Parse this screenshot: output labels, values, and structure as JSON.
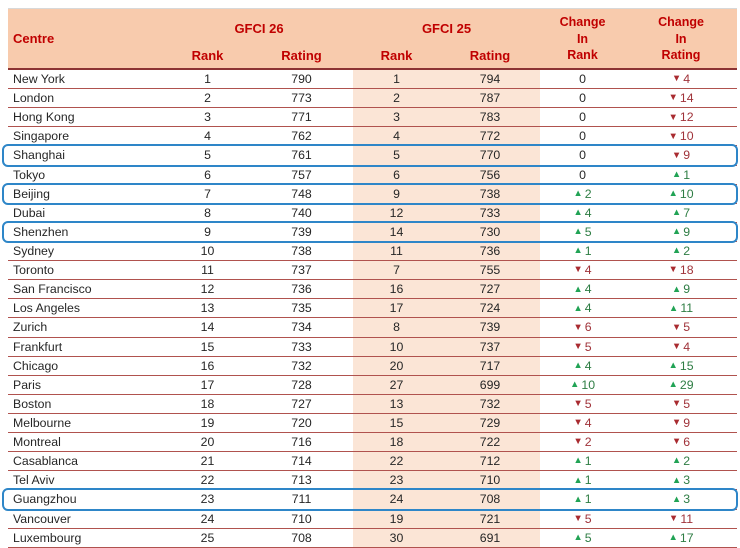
{
  "chart_data": {
    "type": "table",
    "header": {
      "centre": "Centre",
      "gfci26": "GFCI 26",
      "gfci25": "GFCI 25",
      "rank": "Rank",
      "rating": "Rating",
      "change_in_rank": "Change\nIn\nRank",
      "change_in_rating": "Change\nIn\nRating"
    },
    "icons": {
      "up_arrow": "▲",
      "down_arrow": "▼"
    },
    "colors": {
      "header_bg": "#F8CBAD",
      "shaded_column_bg": "#FBE5D6",
      "header_text": "#C00000",
      "row_separator": "#B0524E",
      "header_thick_rule": "#8C3333",
      "highlight_box": "#2E86C8",
      "up_arrow": "#21A355",
      "down_arrow": "#A92B30",
      "body_text": "#262626"
    },
    "rows": [
      {
        "centre": "New York",
        "gfci26_rank": 1,
        "gfci26_rating": 790,
        "gfci25_rank": 1,
        "gfci25_rating": 794,
        "change_rank": {
          "dir": "none",
          "value": 0
        },
        "change_rating": {
          "dir": "down",
          "value": 4
        },
        "highlight": false
      },
      {
        "centre": "London",
        "gfci26_rank": 2,
        "gfci26_rating": 773,
        "gfci25_rank": 2,
        "gfci25_rating": 787,
        "change_rank": {
          "dir": "none",
          "value": 0
        },
        "change_rating": {
          "dir": "down",
          "value": 14
        },
        "highlight": false
      },
      {
        "centre": "Hong Kong",
        "gfci26_rank": 3,
        "gfci26_rating": 771,
        "gfci25_rank": 3,
        "gfci25_rating": 783,
        "change_rank": {
          "dir": "none",
          "value": 0
        },
        "change_rating": {
          "dir": "down",
          "value": 12
        },
        "highlight": false
      },
      {
        "centre": "Singapore",
        "gfci26_rank": 4,
        "gfci26_rating": 762,
        "gfci25_rank": 4,
        "gfci25_rating": 772,
        "change_rank": {
          "dir": "none",
          "value": 0
        },
        "change_rating": {
          "dir": "down",
          "value": 10
        },
        "highlight": false
      },
      {
        "centre": "Shanghai",
        "gfci26_rank": 5,
        "gfci26_rating": 761,
        "gfci25_rank": 5,
        "gfci25_rating": 770,
        "change_rank": {
          "dir": "none",
          "value": 0
        },
        "change_rating": {
          "dir": "down",
          "value": 9
        },
        "highlight": true
      },
      {
        "centre": "Tokyo",
        "gfci26_rank": 6,
        "gfci26_rating": 757,
        "gfci25_rank": 6,
        "gfci25_rating": 756,
        "change_rank": {
          "dir": "none",
          "value": 0
        },
        "change_rating": {
          "dir": "up",
          "value": 1
        },
        "highlight": false
      },
      {
        "centre": "Beijing",
        "gfci26_rank": 7,
        "gfci26_rating": 748,
        "gfci25_rank": 9,
        "gfci25_rating": 738,
        "change_rank": {
          "dir": "up",
          "value": 2
        },
        "change_rating": {
          "dir": "up",
          "value": 10
        },
        "highlight": true
      },
      {
        "centre": "Dubai",
        "gfci26_rank": 8,
        "gfci26_rating": 740,
        "gfci25_rank": 12,
        "gfci25_rating": 733,
        "change_rank": {
          "dir": "up",
          "value": 4
        },
        "change_rating": {
          "dir": "up",
          "value": 7
        },
        "highlight": false
      },
      {
        "centre": "Shenzhen",
        "gfci26_rank": 9,
        "gfci26_rating": 739,
        "gfci25_rank": 14,
        "gfci25_rating": 730,
        "change_rank": {
          "dir": "up",
          "value": 5
        },
        "change_rating": {
          "dir": "up",
          "value": 9
        },
        "highlight": true
      },
      {
        "centre": "Sydney",
        "gfci26_rank": 10,
        "gfci26_rating": 738,
        "gfci25_rank": 11,
        "gfci25_rating": 736,
        "change_rank": {
          "dir": "up",
          "value": 1
        },
        "change_rating": {
          "dir": "up",
          "value": 2
        },
        "highlight": false
      },
      {
        "centre": "Toronto",
        "gfci26_rank": 11,
        "gfci26_rating": 737,
        "gfci25_rank": 7,
        "gfci25_rating": 755,
        "change_rank": {
          "dir": "down",
          "value": 4
        },
        "change_rating": {
          "dir": "down",
          "value": 18
        },
        "highlight": false
      },
      {
        "centre": "San Francisco",
        "gfci26_rank": 12,
        "gfci26_rating": 736,
        "gfci25_rank": 16,
        "gfci25_rating": 727,
        "change_rank": {
          "dir": "up",
          "value": 4
        },
        "change_rating": {
          "dir": "up",
          "value": 9
        },
        "highlight": false
      },
      {
        "centre": "Los Angeles",
        "gfci26_rank": 13,
        "gfci26_rating": 735,
        "gfci25_rank": 17,
        "gfci25_rating": 724,
        "change_rank": {
          "dir": "up",
          "value": 4
        },
        "change_rating": {
          "dir": "up",
          "value": 11
        },
        "highlight": false
      },
      {
        "centre": "Zurich",
        "gfci26_rank": 14,
        "gfci26_rating": 734,
        "gfci25_rank": 8,
        "gfci25_rating": 739,
        "change_rank": {
          "dir": "down",
          "value": 6
        },
        "change_rating": {
          "dir": "down",
          "value": 5
        },
        "highlight": false
      },
      {
        "centre": "Frankfurt",
        "gfci26_rank": 15,
        "gfci26_rating": 733,
        "gfci25_rank": 10,
        "gfci25_rating": 737,
        "change_rank": {
          "dir": "down",
          "value": 5
        },
        "change_rating": {
          "dir": "down",
          "value": 4
        },
        "highlight": false
      },
      {
        "centre": "Chicago",
        "gfci26_rank": 16,
        "gfci26_rating": 732,
        "gfci25_rank": 20,
        "gfci25_rating": 717,
        "change_rank": {
          "dir": "up",
          "value": 4
        },
        "change_rating": {
          "dir": "up",
          "value": 15
        },
        "highlight": false
      },
      {
        "centre": "Paris",
        "gfci26_rank": 17,
        "gfci26_rating": 728,
        "gfci25_rank": 27,
        "gfci25_rating": 699,
        "change_rank": {
          "dir": "up",
          "value": 10
        },
        "change_rating": {
          "dir": "up",
          "value": 29
        },
        "highlight": false
      },
      {
        "centre": "Boston",
        "gfci26_rank": 18,
        "gfci26_rating": 727,
        "gfci25_rank": 13,
        "gfci25_rating": 732,
        "change_rank": {
          "dir": "down",
          "value": 5
        },
        "change_rating": {
          "dir": "down",
          "value": 5
        },
        "highlight": false
      },
      {
        "centre": "Melbourne",
        "gfci26_rank": 19,
        "gfci26_rating": 720,
        "gfci25_rank": 15,
        "gfci25_rating": 729,
        "change_rank": {
          "dir": "down",
          "value": 4
        },
        "change_rating": {
          "dir": "down",
          "value": 9
        },
        "highlight": false
      },
      {
        "centre": "Montreal",
        "gfci26_rank": 20,
        "gfci26_rating": 716,
        "gfci25_rank": 18,
        "gfci25_rating": 722,
        "change_rank": {
          "dir": "down",
          "value": 2
        },
        "change_rating": {
          "dir": "down",
          "value": 6
        },
        "highlight": false
      },
      {
        "centre": "Casablanca",
        "gfci26_rank": 21,
        "gfci26_rating": 714,
        "gfci25_rank": 22,
        "gfci25_rating": 712,
        "change_rank": {
          "dir": "up",
          "value": 1
        },
        "change_rating": {
          "dir": "up",
          "value": 2
        },
        "highlight": false
      },
      {
        "centre": "Tel Aviv",
        "gfci26_rank": 22,
        "gfci26_rating": 713,
        "gfci25_rank": 23,
        "gfci25_rating": 710,
        "change_rank": {
          "dir": "up",
          "value": 1
        },
        "change_rating": {
          "dir": "up",
          "value": 3
        },
        "highlight": false
      },
      {
        "centre": "Guangzhou",
        "gfci26_rank": 23,
        "gfci26_rating": 711,
        "gfci25_rank": 24,
        "gfci25_rating": 708,
        "change_rank": {
          "dir": "up",
          "value": 1
        },
        "change_rating": {
          "dir": "up",
          "value": 3
        },
        "highlight": true
      },
      {
        "centre": "Vancouver",
        "gfci26_rank": 24,
        "gfci26_rating": 710,
        "gfci25_rank": 19,
        "gfci25_rating": 721,
        "change_rank": {
          "dir": "down",
          "value": 5
        },
        "change_rating": {
          "dir": "down",
          "value": 11
        },
        "highlight": false
      },
      {
        "centre": "Luxembourg",
        "gfci26_rank": 25,
        "gfci26_rating": 708,
        "gfci25_rank": 30,
        "gfci25_rating": 691,
        "change_rank": {
          "dir": "up",
          "value": 5
        },
        "change_rating": {
          "dir": "up",
          "value": 17
        },
        "highlight": false
      }
    ]
  }
}
